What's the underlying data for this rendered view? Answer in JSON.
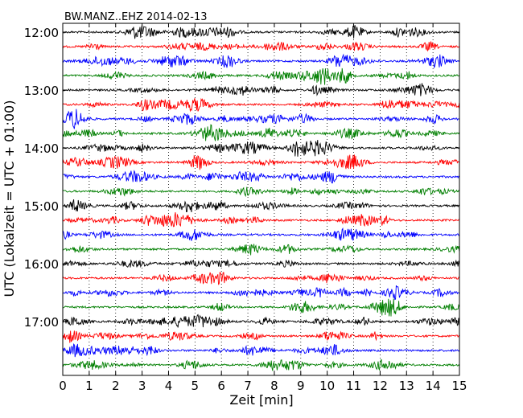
{
  "chart_data": {
    "type": "line",
    "title": "BW.MANZ..EHZ 2014-02-13",
    "xlabel": "Zeit  [min]",
    "ylabel": "UTC (Lokalzeit = UTC + 01:00)",
    "xlim": [
      0,
      15
    ],
    "x_ticks": [
      "0",
      "1",
      "2",
      "3",
      "4",
      "5",
      "6",
      "7",
      "8",
      "9",
      "10",
      "11",
      "12",
      "13",
      "14",
      "15"
    ],
    "y_ticks": [
      "12:00",
      "13:00",
      "14:00",
      "15:00",
      "16:00",
      "17:00"
    ],
    "trace_interval_minutes": 15,
    "start_time": "12:00",
    "trace_count": 24,
    "trace_colors": [
      "#000000",
      "#ff0000",
      "#0000ff",
      "#007f00"
    ],
    "grid": {
      "vertical_dotted": true
    }
  }
}
